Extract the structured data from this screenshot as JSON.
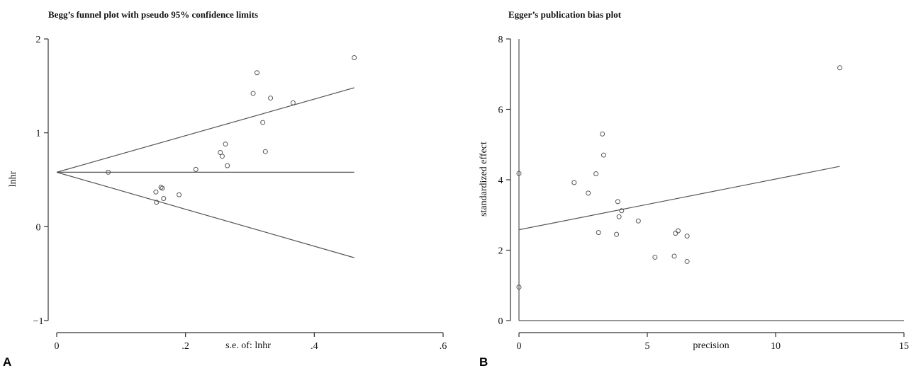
{
  "chart_data": [
    {
      "type": "scatter",
      "title": "Begg’s funnel plot with pseudo 95% confidence limits",
      "panel_label": "A",
      "xlabel": "s.e. of: lnhr",
      "ylabel": "lnhr",
      "xlim": [
        0,
        0.6
      ],
      "ylim": [
        -1,
        2
      ],
      "xticks": [
        0,
        0.2,
        0.4,
        0.6
      ],
      "xtick_labels": [
        "0",
        ".2",
        ".4",
        ".6"
      ],
      "yticks": [
        -1,
        0,
        1,
        2
      ],
      "ytick_labels": [
        "−1",
        "0",
        "1",
        "2"
      ],
      "pooled_estimate": 0.58,
      "funnel_lines": {
        "center": {
          "x": [
            0,
            0.462
          ],
          "y": [
            0.58,
            0.58
          ]
        },
        "upper": {
          "x": [
            0,
            0.462
          ],
          "y": [
            0.58,
            1.48
          ]
        },
        "lower": {
          "x": [
            0,
            0.462
          ],
          "y": [
            0.58,
            -0.33
          ]
        }
      },
      "points": {
        "x": [
          0.08,
          0.154,
          0.155,
          0.162,
          0.164,
          0.166,
          0.19,
          0.216,
          0.254,
          0.257,
          0.262,
          0.265,
          0.305,
          0.311,
          0.32,
          0.324,
          0.332,
          0.367,
          0.462
        ],
        "y": [
          0.58,
          0.37,
          0.26,
          0.42,
          0.41,
          0.3,
          0.34,
          0.61,
          0.79,
          0.75,
          0.88,
          0.65,
          1.42,
          1.64,
          1.11,
          0.8,
          1.37,
          1.32,
          1.8
        ]
      }
    },
    {
      "type": "scatter",
      "title": "Egger’s publication bias plot",
      "panel_label": "B",
      "xlabel": "precision",
      "ylabel": "standardized effect",
      "xlim": [
        0,
        15
      ],
      "ylim": [
        0,
        8
      ],
      "xticks": [
        0,
        5,
        10,
        15
      ],
      "xtick_labels": [
        "0",
        "5",
        "10",
        "15"
      ],
      "yticks": [
        0,
        2,
        4,
        6,
        8
      ],
      "ytick_labels": [
        "0",
        "2",
        "4",
        "6",
        "8"
      ],
      "regression_line": {
        "x": [
          0,
          12.5
        ],
        "y": [
          2.58,
          4.38
        ]
      },
      "points": {
        "x": [
          0,
          0,
          2.15,
          2.7,
          3.0,
          3.1,
          3.25,
          3.3,
          3.8,
          3.85,
          3.9,
          4.0,
          4.65,
          5.3,
          6.05,
          6.1,
          6.2,
          6.55,
          6.55,
          12.5
        ],
        "y": [
          4.18,
          0.95,
          3.92,
          3.62,
          4.17,
          2.5,
          5.3,
          4.7,
          2.45,
          3.38,
          2.95,
          3.12,
          2.83,
          1.8,
          1.83,
          2.48,
          2.55,
          2.4,
          1.68,
          7.18
        ]
      }
    }
  ]
}
